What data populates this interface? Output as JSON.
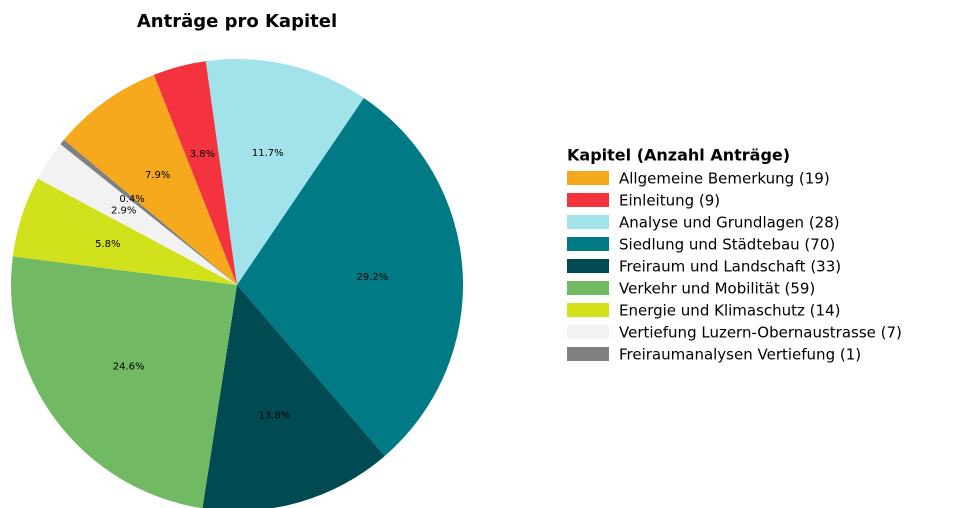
{
  "chart_data": {
    "type": "pie",
    "title": "Anträge pro Kapitel",
    "legend_title": "Kapitel (Anzahl Anträge)",
    "categories": [
      "Allgemeine Bemerkung (19)",
      "Einleitung (9)",
      "Analyse und Grundlagen (28)",
      "Siedlung und Städtebau (70)",
      "Freiraum und Landschaft (33)",
      "Verkehr und Mobilität (59)",
      "Energie und Klimaschutz (14)",
      "Vertiefung Luzern-Obernaustrasse (7)",
      "Freiraumanalysen Vertiefung (1)"
    ],
    "values": [
      7.9,
      3.8,
      11.7,
      29.2,
      13.8,
      24.6,
      5.8,
      2.9,
      0.4
    ],
    "value_labels": [
      "7.9%",
      "3.8%",
      "11.7%",
      "29.2%",
      "13.8%",
      "24.6%",
      "5.8%",
      "2.9%",
      "0.4%"
    ],
    "colors": [
      "#f6a91d",
      "#f5333f",
      "#a1e2eb",
      "#007a84",
      "#004a52",
      "#72b964",
      "#d1e11c",
      "#f2f2f2",
      "#808080"
    ]
  }
}
